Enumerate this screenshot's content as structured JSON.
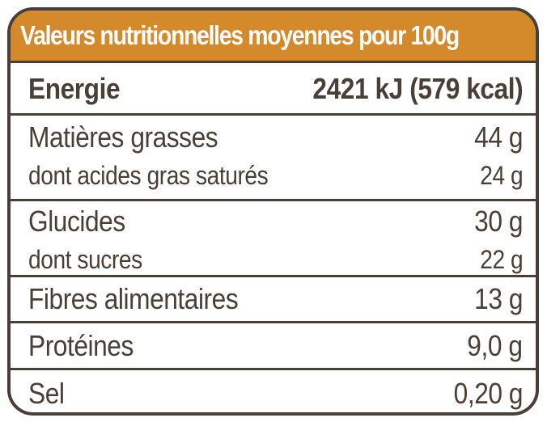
{
  "title": "Valeurs nutritionnelles moyennes pour 100g",
  "colors": {
    "header": "#d4892a",
    "text": "#4a3f36"
  },
  "energy": {
    "label": "Energie",
    "value": "2421 kJ (579 kcal)"
  },
  "fat": {
    "label": "Matières grasses",
    "value": "44 g",
    "sub_label": "dont acides gras saturés",
    "sub_value": "24 g"
  },
  "carbs": {
    "label": "Glucides",
    "value": "30 g",
    "sub_label": "dont sucres",
    "sub_value": "22 g"
  },
  "fibre": {
    "label": "Fibres alimentaires",
    "value": "13 g"
  },
  "protein": {
    "label": "Protéines",
    "value": "9,0 g"
  },
  "salt": {
    "label": "Sel",
    "value": "0,20 g"
  }
}
